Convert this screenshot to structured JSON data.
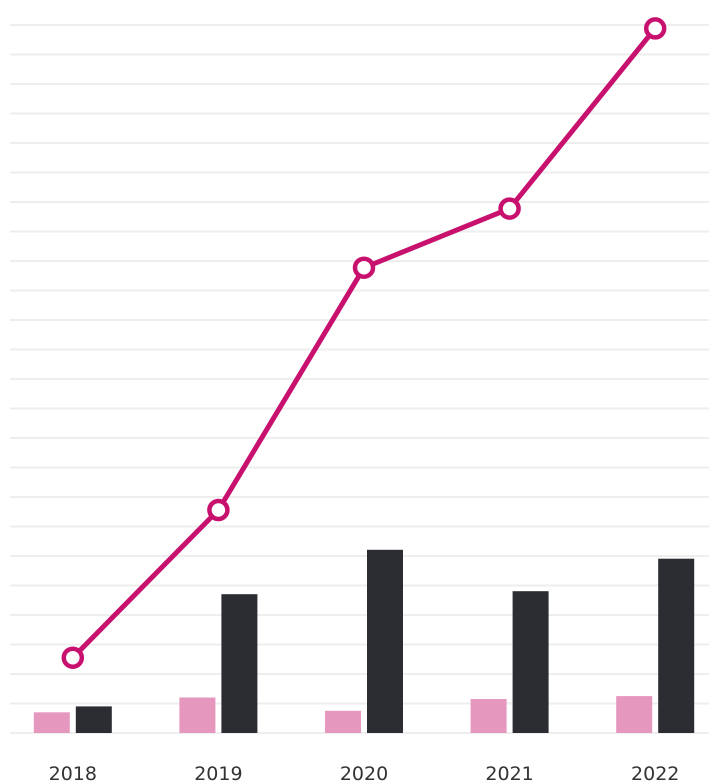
{
  "chart_data": {
    "type": "bar",
    "categories": [
      "2018",
      "2019",
      "2020",
      "2021",
      "2022"
    ],
    "ylim": [
      0,
      24
    ],
    "grid": true,
    "legend": "none",
    "series": [
      {
        "type": "bar",
        "color": "#e597bd",
        "values": [
          0.7,
          1.2,
          0.75,
          1.15,
          1.25
        ]
      },
      {
        "type": "bar",
        "color": "#2b2d33",
        "values": [
          0.9,
          4.7,
          6.2,
          4.8,
          5.9
        ]
      },
      {
        "type": "line",
        "color": "#c8106e",
        "values": [
          2.55,
          7.55,
          15.75,
          17.75,
          23.85
        ]
      }
    ]
  }
}
